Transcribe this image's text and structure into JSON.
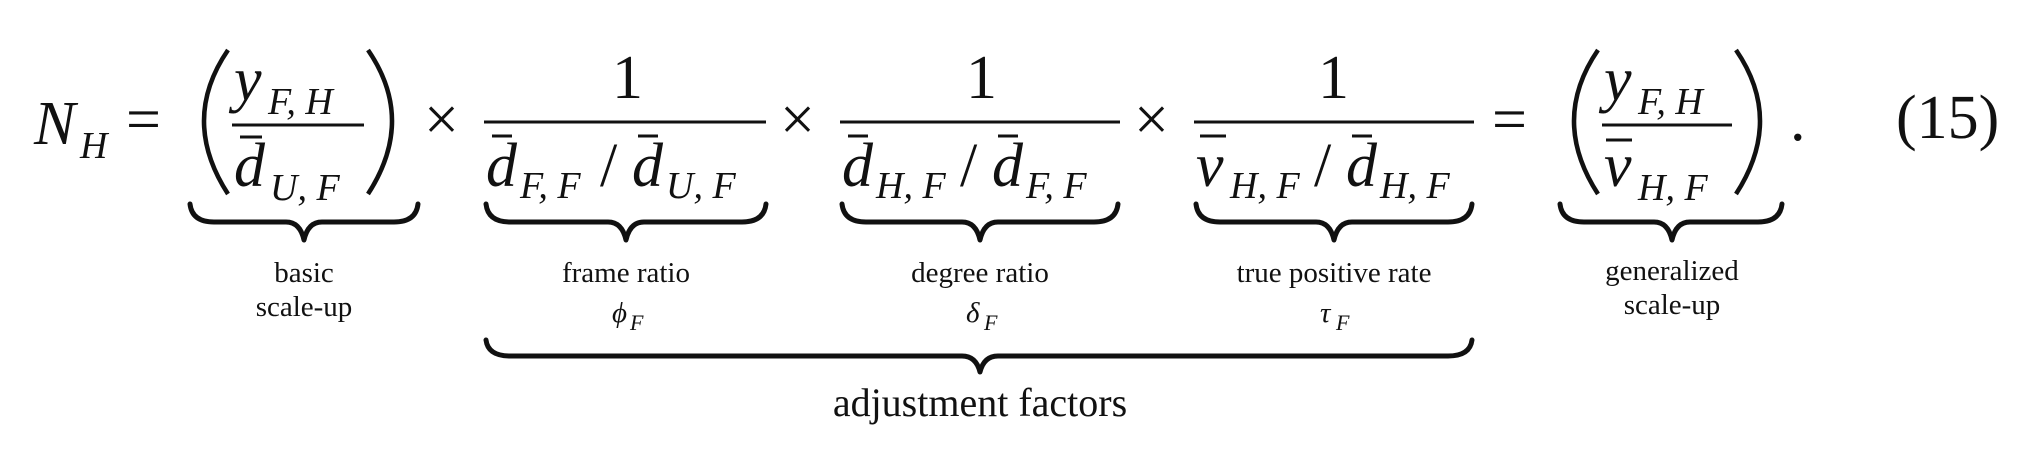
{
  "equation": {
    "lhs": {
      "symbol": "N",
      "subscript": "H"
    },
    "equals": "=",
    "times": "×",
    "period": ".",
    "number": "(15)",
    "basic_term": {
      "numerator": {
        "symbol": "y",
        "subscript": "F, H"
      },
      "denominator": {
        "symbol": "d",
        "subscript": "U, F",
        "overbar": true
      }
    },
    "frame_factor": {
      "numerator": "1",
      "denominator": {
        "a_symbol": "d",
        "a_subscript": "F, F",
        "slash": "/",
        "b_symbol": "d",
        "b_subscript": "U, F"
      }
    },
    "degree_factor": {
      "numerator": "1",
      "denominator": {
        "a_symbol": "d",
        "a_subscript": "H, F",
        "slash": "/",
        "b_symbol": "d",
        "b_subscript": "F, F"
      }
    },
    "tpr_factor": {
      "numerator": "1",
      "denominator": {
        "a_symbol": "v",
        "a_subscript": "H, F",
        "slash": "/",
        "b_symbol": "d",
        "b_subscript": "H, F"
      }
    },
    "generalized_term": {
      "numerator": {
        "symbol": "y",
        "subscript": "F, H"
      },
      "denominator": {
        "symbol": "v",
        "subscript": "H, F",
        "overbar": true
      }
    }
  },
  "annotations": {
    "basic": {
      "line1": "basic",
      "line2": "scale-up"
    },
    "frame": {
      "line1": "frame ratio",
      "symbol": "ϕ",
      "subscript": "F"
    },
    "degree": {
      "line1": "degree ratio",
      "symbol": "δ",
      "subscript": "F"
    },
    "tpr": {
      "line1": "true positive rate",
      "symbol": "τ",
      "subscript": "F"
    },
    "generalized": {
      "line1": "generalized",
      "line2": "scale-up"
    },
    "adjustment": "adjustment factors"
  }
}
